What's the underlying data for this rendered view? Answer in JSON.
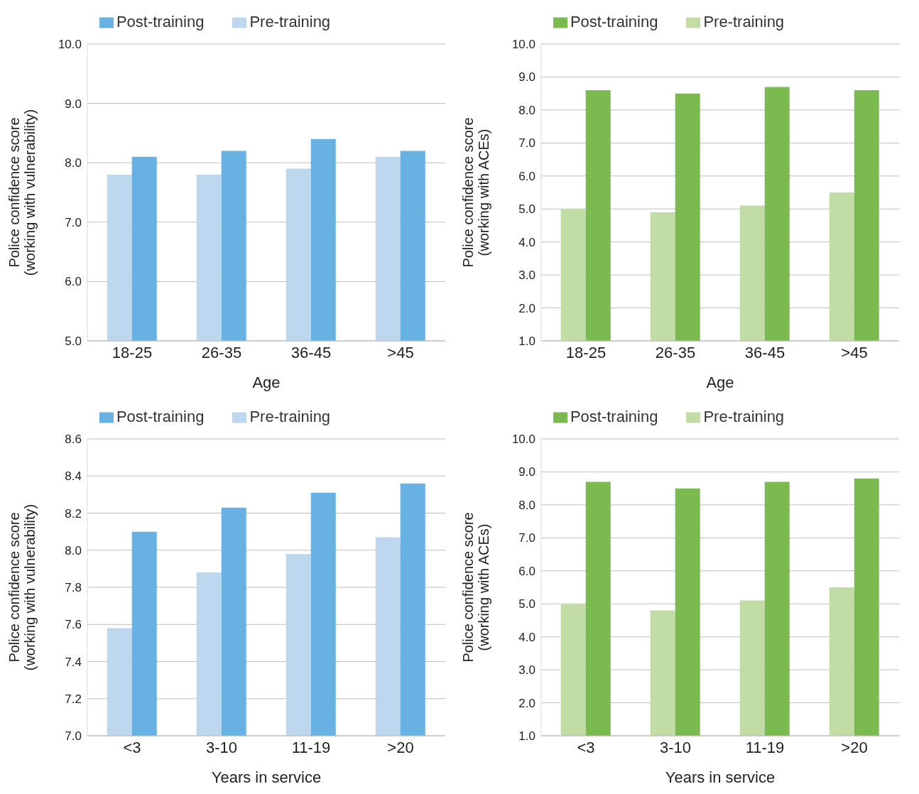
{
  "chart_data": [
    {
      "type": "bar",
      "categories": [
        "18-25",
        "26-35",
        "36-45",
        ">45"
      ],
      "xlabel": "Age",
      "ylabel": "Police confidence score\n(working with vulnerability)",
      "ylim": [
        5,
        10
      ],
      "yticks": [
        {
          "value": 5,
          "label": "5.0"
        },
        {
          "value": 6,
          "label": "6.0"
        },
        {
          "value": 7,
          "label": "7.0"
        },
        {
          "value": 8,
          "label": "8.0"
        },
        {
          "value": 9,
          "label": "9.0"
        },
        {
          "value": 10,
          "label": "10.0"
        }
      ],
      "grid": "y",
      "legend": "top",
      "series": [
        {
          "name": "Pre-training",
          "color": "#bdd7ee",
          "values": [
            7.8,
            7.8,
            7.9,
            8.1
          ]
        },
        {
          "name": "Post-training",
          "color": "#67b2e3",
          "values": [
            8.1,
            8.2,
            8.4,
            8.2
          ]
        }
      ]
    },
    {
      "type": "bar",
      "categories": [
        "18-25",
        "26-35",
        "36-45",
        ">45"
      ],
      "xlabel": "Age",
      "ylabel": "Police confidence score\n(working with ACEs)",
      "ylim": [
        1,
        10
      ],
      "yticks": [
        {
          "value": 1,
          "label": "1.0"
        },
        {
          "value": 2,
          "label": "2.0"
        },
        {
          "value": 3,
          "label": "3.0"
        },
        {
          "value": 4,
          "label": "4.0"
        },
        {
          "value": 5,
          "label": "5.0"
        },
        {
          "value": 6,
          "label": "6.0"
        },
        {
          "value": 7,
          "label": "7.0"
        },
        {
          "value": 8,
          "label": "8.0"
        },
        {
          "value": 9,
          "label": "9.0"
        },
        {
          "value": 10,
          "label": "10.0"
        }
      ],
      "grid": "y",
      "legend": "top",
      "series": [
        {
          "name": "Pre-training",
          "color": "#c2dca6",
          "values": [
            5.0,
            4.9,
            5.1,
            5.5
          ]
        },
        {
          "name": "Post-training",
          "color": "#7aba4e",
          "values": [
            8.6,
            8.5,
            8.7,
            8.6
          ]
        }
      ]
    },
    {
      "type": "bar",
      "categories": [
        "<3",
        "3-10",
        "11-19",
        ">20"
      ],
      "xlabel": "Years in service",
      "ylabel": "Police confidence score\n(working with vulnerability)",
      "ylim": [
        7,
        8.6
      ],
      "yticks": [
        {
          "value": 7,
          "label": "7.0"
        },
        {
          "value": 7.2,
          "label": "7.2"
        },
        {
          "value": 7.4,
          "label": "7.4"
        },
        {
          "value": 7.6,
          "label": "7.6"
        },
        {
          "value": 7.8,
          "label": "7.8"
        },
        {
          "value": 8,
          "label": "8.0"
        },
        {
          "value": 8.2,
          "label": "8.2"
        },
        {
          "value": 8.4,
          "label": "8.4"
        },
        {
          "value": 8.6,
          "label": "8.6"
        }
      ],
      "grid": "y",
      "legend": "top",
      "series": [
        {
          "name": "Pre-training",
          "color": "#bdd7ee",
          "values": [
            7.58,
            7.88,
            7.98,
            8.07
          ]
        },
        {
          "name": "Post-training",
          "color": "#67b2e3",
          "values": [
            8.1,
            8.23,
            8.31,
            8.36
          ]
        }
      ]
    },
    {
      "type": "bar",
      "categories": [
        "<3",
        "3-10",
        "11-19",
        ">20"
      ],
      "xlabel": "Years in service",
      "ylabel": "Police confidence score\n(working with ACEs)",
      "ylim": [
        1,
        10
      ],
      "yticks": [
        {
          "value": 1,
          "label": "1.0"
        },
        {
          "value": 2,
          "label": "2.0"
        },
        {
          "value": 3,
          "label": "3.0"
        },
        {
          "value": 4,
          "label": "4.0"
        },
        {
          "value": 5,
          "label": "5.0"
        },
        {
          "value": 6,
          "label": "6.0"
        },
        {
          "value": 7,
          "label": "7.0"
        },
        {
          "value": 8,
          "label": "8.0"
        },
        {
          "value": 9,
          "label": "9.0"
        },
        {
          "value": 10,
          "label": "10.0"
        }
      ],
      "grid": "y",
      "legend": "top",
      "series": [
        {
          "name": "Pre-training",
          "color": "#c2dca6",
          "values": [
            5.0,
            4.8,
            5.1,
            5.5
          ]
        },
        {
          "name": "Post-training",
          "color": "#7aba4e",
          "values": [
            8.7,
            8.5,
            8.7,
            8.8
          ]
        }
      ]
    }
  ]
}
